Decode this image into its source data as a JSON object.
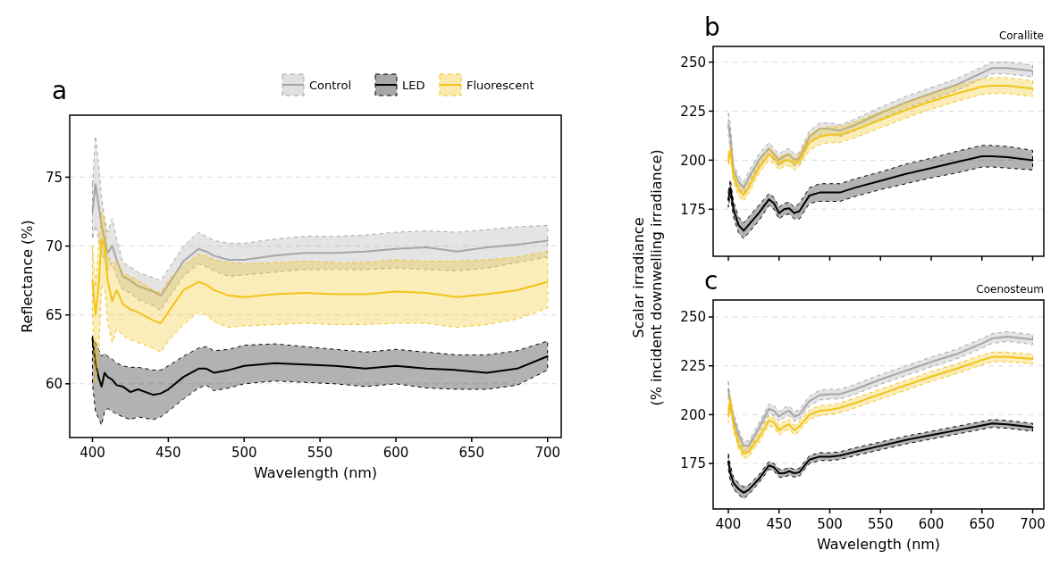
{
  "chart_data": [
    {
      "type": "line",
      "title": "a",
      "xlabel": "Wavelength (nm)",
      "ylabel": "Reflectance (%)",
      "xlim": [
        385,
        709
      ],
      "xticks": [
        400,
        450,
        500,
        550,
        600,
        650,
        700
      ],
      "ylim": [
        56.1,
        79.5
      ],
      "yticks": [
        60,
        65,
        70,
        75
      ],
      "grid": "y",
      "legend": "top right",
      "x": [
        400,
        402,
        404,
        406,
        408,
        410,
        413,
        416,
        420,
        425,
        430,
        440,
        445,
        450,
        460,
        470,
        475,
        480,
        490,
        500,
        520,
        540,
        560,
        580,
        600,
        620,
        640,
        660,
        680,
        700
      ],
      "series": [
        {
          "name": "Control",
          "color": "#a6a6a6",
          "values": [
            72.5,
            74.5,
            73,
            71.5,
            70.5,
            69.5,
            70,
            69,
            67.8,
            67.5,
            67.1,
            66.7,
            66.4,
            67.2,
            68.9,
            69.8,
            69.6,
            69.3,
            69.0,
            69.0,
            69.3,
            69.5,
            69.5,
            69.6,
            69.8,
            69.9,
            69.6,
            69.9,
            70.1,
            70.4
          ],
          "lower": [
            70.5,
            71.5,
            70.5,
            69.5,
            69,
            68.3,
            68.8,
            67.8,
            66.8,
            66.6,
            66.1,
            65.7,
            65.3,
            66.2,
            67.8,
            68.7,
            68.5,
            68.2,
            67.8,
            67.9,
            68.1,
            68.3,
            68.3,
            68.3,
            68.4,
            68.3,
            68.2,
            68.4,
            68.8,
            69.2
          ],
          "upper": [
            74.5,
            78,
            76,
            73.5,
            72,
            71,
            72,
            70.5,
            68.8,
            68.5,
            68.1,
            67.7,
            67.5,
            68.3,
            70,
            71,
            70.7,
            70.4,
            70.2,
            70.2,
            70.5,
            70.7,
            70.7,
            70.8,
            71.0,
            71.1,
            71.0,
            71.2,
            71.4,
            71.5
          ]
        },
        {
          "name": "LED",
          "color": "#000000",
          "values": [
            63.3,
            61.5,
            60.5,
            59.8,
            60.8,
            60.5,
            60.3,
            59.9,
            59.8,
            59.4,
            59.6,
            59.2,
            59.3,
            59.6,
            60.5,
            61.1,
            61.1,
            60.8,
            61.0,
            61.3,
            61.5,
            61.4,
            61.3,
            61.1,
            61.3,
            61.1,
            61.0,
            60.8,
            61.1,
            62.0
          ],
          "lower": [
            60,
            58,
            57.5,
            57,
            58,
            58.2,
            58,
            57.8,
            57.6,
            57.4,
            57.6,
            57.4,
            57.6,
            58.0,
            58.9,
            59.7,
            59.9,
            59.5,
            59.7,
            60.0,
            60.2,
            60.1,
            60.0,
            59.8,
            60.0,
            59.7,
            59.6,
            59.6,
            59.9,
            61.0
          ],
          "upper": [
            63.5,
            63,
            62.5,
            62,
            62.2,
            62,
            61.8,
            61.5,
            61.3,
            61.2,
            61.2,
            61.0,
            61.0,
            61.3,
            62.0,
            62.6,
            62.7,
            62.4,
            62.5,
            62.8,
            62.9,
            62.7,
            62.5,
            62.3,
            62.5,
            62.3,
            62.1,
            62.1,
            62.4,
            63.1
          ]
        },
        {
          "name": "Fluorescent",
          "color": "#f2c318",
          "values": [
            67.5,
            65,
            67,
            70.5,
            70,
            67.5,
            66,
            66.8,
            65.8,
            65.4,
            65.2,
            64.6,
            64.4,
            65.2,
            66.8,
            67.4,
            67.2,
            66.8,
            66.4,
            66.3,
            66.5,
            66.6,
            66.5,
            66.5,
            66.7,
            66.6,
            66.3,
            66.5,
            66.8,
            67.4
          ],
          "lower": [
            65,
            60,
            62,
            67,
            67,
            64.5,
            63,
            64,
            63.5,
            63.2,
            63,
            62.6,
            62.3,
            63.1,
            64.3,
            65.2,
            65,
            64.5,
            64.1,
            64.2,
            64.3,
            64.4,
            64.3,
            64.3,
            64.4,
            64.4,
            64.1,
            64.3,
            64.7,
            65.5
          ],
          "upper": [
            70,
            67,
            70,
            72.5,
            72,
            69.5,
            68.5,
            69,
            68,
            67.8,
            67.5,
            66.8,
            66.6,
            67.5,
            68.6,
            69.4,
            69.3,
            69,
            68.8,
            68.7,
            68.8,
            68.9,
            68.8,
            68.8,
            69.0,
            68.9,
            68.9,
            69.0,
            69.2,
            69.6
          ]
        }
      ]
    },
    {
      "type": "line",
      "title": "b",
      "subtitle": "Corallite",
      "ylabel": "Scalar irradiance\n(% incident downwelling irradiance)",
      "xlim": [
        385,
        711
      ],
      "xticks": [
        400,
        450,
        500,
        550,
        600,
        650,
        700
      ],
      "ylim": [
        151,
        258
      ],
      "yticks": [
        175,
        200,
        225,
        250
      ],
      "grid": "y",
      "tick_labels": "y",
      "x": [
        400,
        402,
        405,
        410,
        415,
        420,
        430,
        440,
        445,
        450,
        455,
        460,
        465,
        470,
        480,
        490,
        500,
        510,
        525,
        550,
        575,
        600,
        625,
        650,
        660,
        675,
        700
      ],
      "series": [
        {
          "color": "#a6a6a6",
          "values": [
            218,
            212,
            195,
            189,
            186,
            191,
            200,
            206,
            203,
            200,
            202,
            203,
            200,
            201,
            212,
            216,
            216,
            215,
            218,
            224,
            229.5,
            234,
            238.5,
            244.5,
            247,
            247,
            245.5
          ],
          "lower": [
            212,
            206,
            192,
            186,
            183,
            188,
            197,
            203,
            200,
            197,
            199,
            200,
            197,
            198,
            209,
            213,
            213,
            212,
            215,
            221,
            226.5,
            231,
            235.5,
            241.5,
            244,
            244,
            242.5
          ],
          "upper": [
            224,
            218,
            198,
            192,
            189,
            194,
            203,
            209,
            206,
            203,
            205,
            206,
            203,
            204,
            215,
            219,
            219,
            218,
            221,
            227,
            232.5,
            237,
            241.5,
            247.5,
            250,
            250,
            248.5
          ]
        },
        {
          "color": "#000000",
          "values": [
            180,
            186,
            175,
            167,
            164,
            167,
            173,
            180,
            178,
            173,
            175,
            175.5,
            173,
            174,
            182,
            183.5,
            183.5,
            183.5,
            186,
            189.5,
            193,
            196,
            199,
            202,
            202,
            201.5,
            200
          ],
          "lower": [
            176,
            182,
            171,
            163,
            160,
            163,
            169,
            177,
            175,
            170,
            172,
            172.5,
            170,
            170,
            178,
            179,
            179,
            179,
            181.5,
            185,
            188,
            191,
            193.5,
            196.5,
            196.5,
            196,
            195
          ],
          "upper": [
            184,
            190,
            179,
            171,
            168,
            171,
            177,
            183,
            181,
            176,
            178,
            178.5,
            176,
            178,
            186,
            188,
            188,
            188,
            190.5,
            194,
            198,
            201,
            204.5,
            207.5,
            207.5,
            207,
            205
          ]
        },
        {
          "color": "#f2c318",
          "values": [
            200,
            205,
            192,
            185,
            182,
            186,
            196,
            203,
            201,
            198,
            200,
            200,
            198,
            200,
            209,
            212,
            213,
            213,
            215.5,
            220.5,
            225.5,
            230,
            234,
            237.5,
            238,
            238,
            236.5
          ],
          "lower": [
            197,
            202,
            189,
            182,
            179,
            183,
            193,
            200,
            198,
            195,
            197,
            197,
            195,
            197,
            205,
            208,
            209,
            209,
            211.5,
            216.5,
            221.5,
            226,
            230,
            233.5,
            234,
            234,
            232.5
          ],
          "upper": [
            203,
            208,
            195,
            188,
            185,
            189,
            199,
            206,
            204,
            201,
            203,
            203,
            201,
            203,
            213,
            216,
            217,
            217,
            219.5,
            224.5,
            229.5,
            234,
            238,
            241.5,
            242,
            242,
            240.5
          ]
        }
      ]
    },
    {
      "type": "line",
      "title": "c",
      "subtitle": "Coenosteum",
      "xlabel": "Wavelength (nm)",
      "xlim": [
        385,
        711
      ],
      "xticks": [
        400,
        450,
        500,
        550,
        600,
        650,
        700
      ],
      "ylim": [
        151.7,
        258.7
      ],
      "yticks": [
        175,
        200,
        225,
        250
      ],
      "grid": "y",
      "x": [
        400,
        402,
        405,
        410,
        415,
        420,
        430,
        440,
        445,
        450,
        455,
        460,
        465,
        470,
        480,
        490,
        500,
        510,
        525,
        550,
        575,
        600,
        625,
        650,
        660,
        675,
        700
      ],
      "series": [
        {
          "color": "#a6a6a6",
          "values": [
            213,
            205,
            198,
            190,
            184,
            184,
            193,
            203,
            202,
            199,
            201,
            202,
            199,
            200,
            207,
            210,
            210.5,
            210.5,
            213,
            218,
            222.5,
            227,
            231,
            236.5,
            239,
            240,
            238.5
          ],
          "lower": [
            209,
            202,
            195,
            187.5,
            181.5,
            181.5,
            190.5,
            200.5,
            199.5,
            196.5,
            198.5,
            199.5,
            196.5,
            197.5,
            204.5,
            207.5,
            208,
            208,
            210.5,
            215.5,
            220,
            224.5,
            228.5,
            234,
            236.5,
            237.5,
            236
          ],
          "upper": [
            217,
            208,
            201,
            192.5,
            186.5,
            186.5,
            195.5,
            205.5,
            204.5,
            201.5,
            203.5,
            204.5,
            201.5,
            202.5,
            209.5,
            212.5,
            213,
            213,
            215.5,
            220.5,
            225,
            229.5,
            233.5,
            239,
            241.5,
            242.5,
            241
          ]
        },
        {
          "color": "#000000",
          "values": [
            176,
            170,
            165,
            162,
            160,
            161.5,
            167,
            174,
            173,
            170,
            170,
            171,
            170,
            170.5,
            177,
            178.5,
            178.5,
            179,
            181,
            184,
            187,
            189.5,
            192,
            194.5,
            195.5,
            195,
            193.5
          ],
          "lower": [
            172,
            166,
            162,
            159,
            157,
            159,
            165,
            172,
            171,
            168,
            168,
            169,
            168,
            168.5,
            175,
            176.5,
            176.5,
            177,
            179,
            182,
            185,
            187.5,
            190,
            192.5,
            193.5,
            193,
            191.5
          ],
          "upper": [
            180,
            174,
            168,
            165,
            163,
            164,
            169,
            176,
            175,
            172,
            172,
            173,
            172,
            172.5,
            179,
            180.5,
            180.5,
            181,
            183,
            186,
            189,
            191.5,
            194,
            196.5,
            197.5,
            197,
            195.5
          ]
        },
        {
          "color": "#f2c318",
          "values": [
            200,
            207,
            195,
            185,
            180,
            181,
            188,
            197,
            196,
            192,
            194,
            195,
            192,
            194,
            200,
            202,
            202.5,
            203.5,
            206,
            210.5,
            215,
            219.5,
            223.5,
            228,
            229.5,
            229.5,
            228.5
          ],
          "lower": [
            196,
            204,
            192,
            182.5,
            177.5,
            178.5,
            185.5,
            194.5,
            193.5,
            189.5,
            191.5,
            192.5,
            189.5,
            191.5,
            197.5,
            199.5,
            200,
            201,
            203.5,
            208,
            212.5,
            217,
            221,
            225.5,
            227,
            227,
            226
          ],
          "upper": [
            204,
            210,
            198,
            187.5,
            182.5,
            183.5,
            190.5,
            199.5,
            198.5,
            194.5,
            196.5,
            197.5,
            194.5,
            196.5,
            202.5,
            204.5,
            205,
            206,
            208.5,
            213,
            217.5,
            222,
            226,
            230.5,
            232,
            232,
            231
          ]
        }
      ]
    }
  ]
}
